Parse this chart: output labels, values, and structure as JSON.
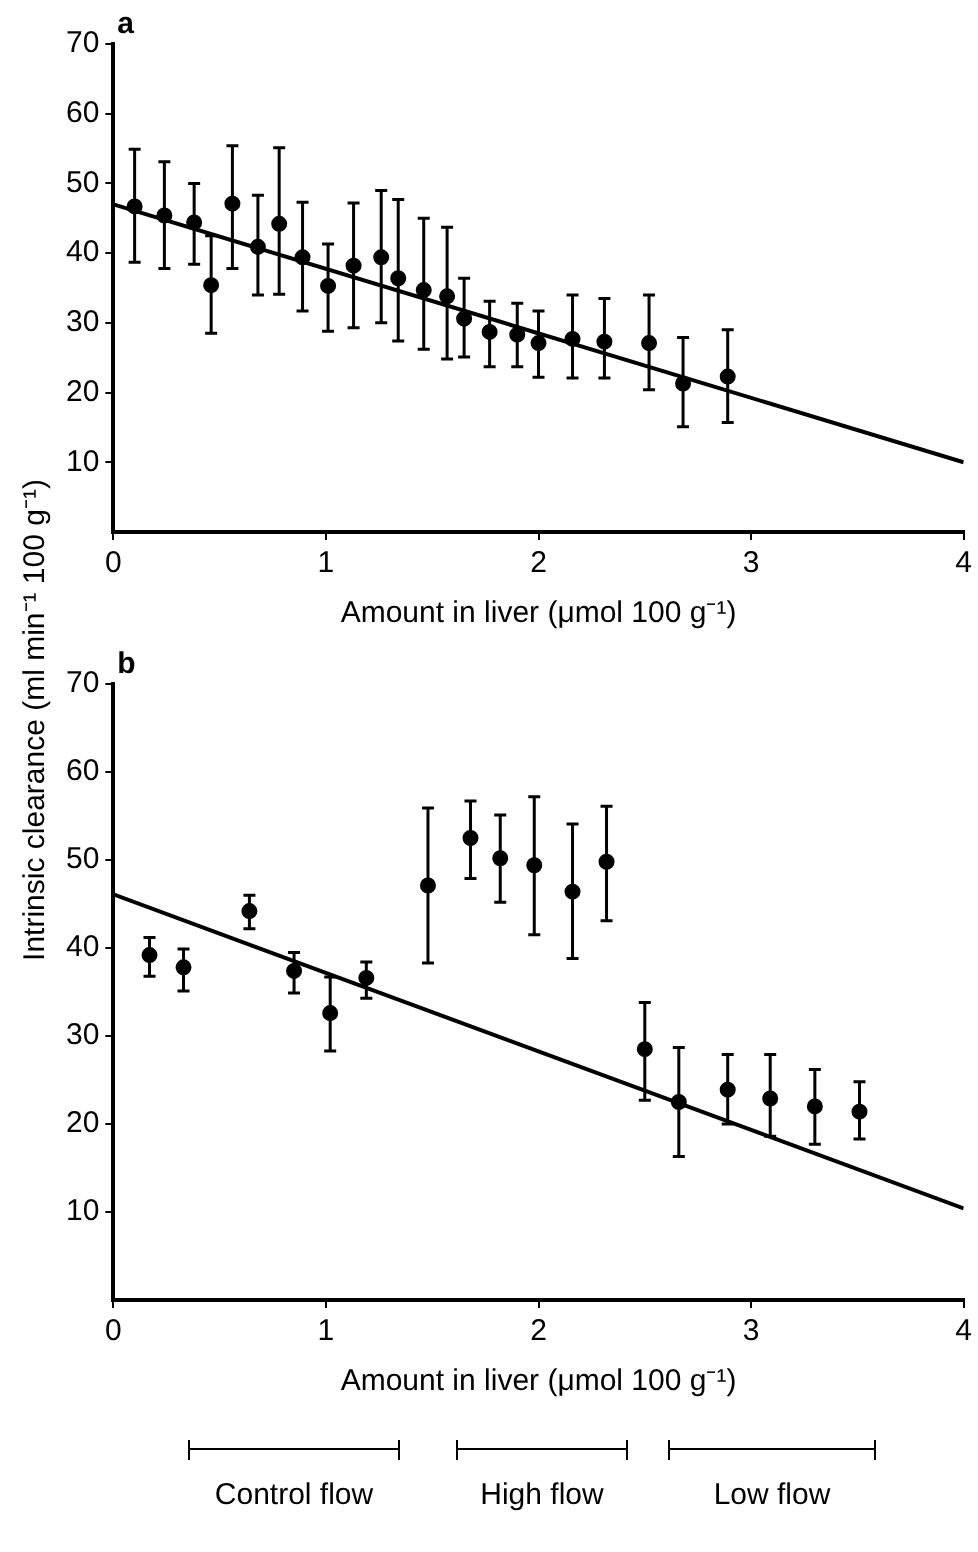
{
  "chart_data": [
    {
      "type": "scatter",
      "title": "a",
      "xlabel": "Amount in liver (μmol 100 g⁻¹)",
      "xlim": [
        0,
        4
      ],
      "xticks": [
        0,
        1,
        2,
        3,
        4
      ],
      "ylim": [
        0,
        70
      ],
      "yticks": [
        10,
        20,
        30,
        40,
        50,
        60,
        70
      ],
      "grid": false,
      "legend": false,
      "series": [
        {
          "type": "scatter",
          "marker": "circle",
          "color": "#000000",
          "x": [
            0.1,
            0.24,
            0.38,
            0.46,
            0.56,
            0.68,
            0.78,
            0.89,
            1.01,
            1.13,
            1.26,
            1.34,
            1.46,
            1.57,
            1.65,
            1.77,
            1.9,
            2.0,
            2.16,
            2.31,
            2.52,
            2.68,
            2.89
          ],
          "values": [
            46.7,
            45.4,
            44.4,
            35.4,
            47.1,
            40.9,
            44.2,
            39.4,
            35.3,
            38.2,
            39.4,
            36.4,
            34.7,
            33.8,
            30.6,
            28.7,
            28.3,
            27.1,
            27.7,
            27.3,
            27.1,
            21.3,
            22.3
          ],
          "errors": [
            [
              38.7,
              54.9
            ],
            [
              37.8,
              53.1
            ],
            [
              38.4,
              50.0
            ],
            [
              28.5,
              42.5
            ],
            [
              37.8,
              55.4
            ],
            [
              34.0,
              48.3
            ],
            [
              34.1,
              55.1
            ],
            [
              31.7,
              47.3
            ],
            [
              28.8,
              41.3
            ],
            [
              29.3,
              47.2
            ],
            [
              30.0,
              49.0
            ],
            [
              27.4,
              47.7
            ],
            [
              26.2,
              45.0
            ],
            [
              24.8,
              43.7
            ],
            [
              25.1,
              36.4
            ],
            [
              23.7,
              33.1
            ],
            [
              23.7,
              32.8
            ],
            [
              22.2,
              31.7
            ],
            [
              22.1,
              34.0
            ],
            [
              22.1,
              33.5
            ],
            [
              20.4,
              34.0
            ],
            [
              15.1,
              27.9
            ],
            [
              15.7,
              29.0
            ]
          ]
        },
        {
          "type": "line",
          "color": "#000000",
          "x": [
            0,
            4
          ],
          "values": [
            47,
            10
          ]
        }
      ]
    },
    {
      "type": "scatter",
      "title": "b",
      "xlabel": "Amount in liver (μmol 100 g⁻¹)",
      "ylabel": "Intrinsic clearance (ml min⁻¹ 100 g⁻¹)",
      "xlim": [
        0,
        4
      ],
      "xticks": [
        0,
        1,
        2,
        3,
        4
      ],
      "ylim": [
        0,
        70
      ],
      "yticks": [
        10,
        20,
        30,
        40,
        50,
        60,
        70
      ],
      "grid": false,
      "legend": false,
      "series": [
        {
          "type": "scatter",
          "marker": "circle",
          "color": "#000000",
          "x": [
            0.17,
            0.33,
            0.64,
            0.85,
            1.02,
            1.19,
            1.48,
            1.68,
            1.82,
            1.98,
            2.16,
            2.32,
            2.5,
            2.66,
            2.89,
            3.09,
            3.3,
            3.51
          ],
          "values": [
            39.2,
            37.8,
            44.2,
            37.4,
            32.6,
            36.6,
            47.1,
            52.5,
            50.2,
            49.4,
            46.4,
            49.8,
            28.5,
            22.5,
            23.9,
            22.9,
            22.0,
            21.4
          ],
          "errors": [
            [
              36.8,
              41.2
            ],
            [
              35.1,
              39.9
            ],
            [
              42.2,
              46.0
            ],
            [
              34.9,
              39.5
            ],
            [
              28.3,
              36.7
            ],
            [
              34.3,
              38.4
            ],
            [
              38.3,
              55.9
            ],
            [
              47.9,
              56.7
            ],
            [
              45.2,
              55.1
            ],
            [
              41.5,
              57.2
            ],
            [
              38.8,
              54.1
            ],
            [
              43.1,
              56.1
            ],
            [
              22.7,
              33.8
            ],
            [
              16.3,
              28.7
            ],
            [
              20.0,
              27.9
            ],
            [
              18.6,
              27.9
            ],
            [
              17.7,
              26.2
            ],
            [
              18.3,
              24.8
            ]
          ]
        },
        {
          "type": "line",
          "color": "#000000",
          "x": [
            0,
            4
          ],
          "values": [
            46.1,
            10.4
          ]
        }
      ],
      "annotations": [
        "Control flow",
        "High flow",
        "Low flow"
      ]
    }
  ]
}
